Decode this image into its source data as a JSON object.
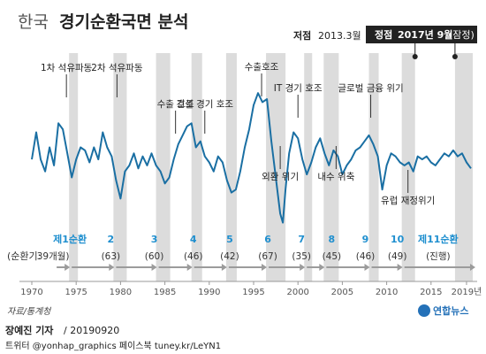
{
  "header": {
    "title_light": "한국",
    "title_bold": "경기순환국면 분석"
  },
  "peak_labels": {
    "trough_prefix": "저점",
    "trough_date": "2013.3월",
    "peak_box_prefix": "정점",
    "peak_box_date": "2017년 9월",
    "peak_box_suffix": "(잠정)"
  },
  "colors": {
    "line": "#1a6fa3",
    "recession_band": "#dcdcdc",
    "cycle_number": "#1f8fcf",
    "arrow": "#9b9b9b",
    "axis_text": "#555555",
    "title_dark": "#222222",
    "badge_bg": "#222222",
    "badge_text": "#ffffff",
    "logo_blue": "#2471b8"
  },
  "events": [
    {
      "label": "1차 석유파동",
      "year": 1973.9
    },
    {
      "label": "2차 석유파동",
      "year": 1979.6
    },
    {
      "label": "수출 호조",
      "year": 1986.2
    },
    {
      "label": "건설 경기 호조",
      "year": 1989.5
    },
    {
      "label": "수출호조",
      "year": 1995.9
    },
    {
      "label": "IT 경기 호조",
      "year": 2000.0
    },
    {
      "label": "글로벌 금융 위기",
      "year": 2008.2
    },
    {
      "label": "외환 위기",
      "year": 1998.0
    },
    {
      "label": "내수 위축",
      "year": 2004.3
    },
    {
      "label": "유럽 재정위기",
      "year": 2012.4
    }
  ],
  "cycles": {
    "prefix_label": "(순환기:",
    "items": [
      {
        "label": "제1순환",
        "months": "39개월)",
        "center": 1974.3
      },
      {
        "label": "2",
        "months": "(63)",
        "center": 1978.9
      },
      {
        "label": "3",
        "months": "(60)",
        "center": 1983.8
      },
      {
        "label": "4",
        "months": "(46)",
        "center": 1988.2
      },
      {
        "label": "5",
        "months": "(42)",
        "center": 1992.3
      },
      {
        "label": "6",
        "months": "(67)",
        "center": 1996.6
      },
      {
        "label": "7",
        "months": "(35)",
        "center": 2000.4
      },
      {
        "label": "8",
        "months": "(45)",
        "center": 2003.8
      },
      {
        "label": "9",
        "months": "(46)",
        "center": 2007.6
      },
      {
        "label": "10",
        "months": "(49)",
        "center": 2011.2
      },
      {
        "label": "제11순환",
        "months": "(진행)",
        "center": 2015.8
      }
    ]
  },
  "axis": {
    "ticks": [
      "1970",
      "1975",
      "1980",
      "1985",
      "1990",
      "1995",
      "2000",
      "2005",
      "2010",
      "2015",
      "2019년"
    ]
  },
  "footer": {
    "source": "자료/통계청",
    "logo": "연합뉴스",
    "byline_name": "장예진 기자",
    "byline_date": "/ 20190920",
    "social": "트위터 @yonhap_graphics  페이스북 tuney.kr/LeYN1"
  },
  "chart_data": {
    "type": "line",
    "title": "한국 경기순환국면 분석",
    "xlim": [
      1970,
      2020
    ],
    "ylim": [
      -1,
      1.6
    ],
    "x_ticks": [
      1970,
      1975,
      1980,
      1985,
      1990,
      1995,
      2000,
      2005,
      2010,
      2015,
      2019
    ],
    "recession_bands": [
      [
        1974.2,
        1975.2
      ],
      [
        1979.2,
        1980.7
      ],
      [
        1984.0,
        1985.6
      ],
      [
        1988.0,
        1989.2
      ],
      [
        1991.9,
        1993.1
      ],
      [
        1996.4,
        1998.6
      ],
      [
        2000.7,
        2001.6
      ],
      [
        2002.9,
        2004.6
      ],
      [
        2008.0,
        2009.1
      ],
      [
        2011.7,
        2013.2
      ],
      [
        2017.7,
        2019.7
      ]
    ],
    "series": [
      {
        "x": [
          1970,
          1970.5,
          1971,
          1971.5,
          1972,
          1972.5,
          1973,
          1973.5,
          1974,
          1974.5,
          1975,
          1975.5,
          1976,
          1976.5,
          1977,
          1977.5,
          1978,
          1978.5,
          1979,
          1979.5,
          1980,
          1980.5,
          1981,
          1981.5,
          1982,
          1982.5,
          1983,
          1983.5,
          1984,
          1984.5,
          1985,
          1985.5,
          1986,
          1986.5,
          1987,
          1987.5,
          1988,
          1988.5,
          1989,
          1989.5,
          1990,
          1990.5,
          1991,
          1991.5,
          1992,
          1992.5,
          1993,
          1993.5,
          1994,
          1994.5,
          1995,
          1995.5,
          1996,
          1996.5,
          1997,
          1997.5,
          1998,
          1998.3,
          1998.6,
          1999,
          1999.5,
          2000,
          2000.5,
          2001,
          2001.5,
          2002,
          2002.5,
          2003,
          2003.5,
          2004,
          2004.5,
          2005,
          2005.5,
          2006,
          2006.5,
          2007,
          2007.5,
          2008,
          2008.5,
          2009,
          2009.5,
          2010,
          2010.5,
          2011,
          2011.5,
          2012,
          2012.5,
          2013,
          2013.5,
          2014,
          2014.5,
          2015,
          2015.5,
          2016,
          2016.5,
          2017,
          2017.5,
          2018,
          2018.5,
          2019,
          2019.5
        ],
        "y": [
          0.1,
          0.55,
          0.1,
          -0.1,
          0.3,
          0.0,
          0.7,
          0.6,
          0.2,
          -0.2,
          0.1,
          0.3,
          0.25,
          0.05,
          0.3,
          0.1,
          0.55,
          0.3,
          0.15,
          -0.25,
          -0.55,
          -0.1,
          0.0,
          0.2,
          -0.05,
          0.15,
          0.0,
          0.2,
          0.0,
          -0.1,
          -0.3,
          -0.2,
          0.1,
          0.35,
          0.5,
          0.65,
          0.7,
          0.3,
          0.4,
          0.15,
          0.05,
          -0.1,
          0.15,
          0.05,
          -0.25,
          -0.45,
          -0.4,
          -0.1,
          0.3,
          0.6,
          1.0,
          1.2,
          1.05,
          1.1,
          0.4,
          -0.2,
          -0.8,
          -0.95,
          -0.4,
          0.2,
          0.55,
          0.45,
          0.1,
          -0.15,
          0.05,
          0.3,
          0.45,
          0.2,
          0.0,
          0.25,
          0.15,
          -0.15,
          0.0,
          0.1,
          0.25,
          0.3,
          0.4,
          0.5,
          0.35,
          0.15,
          -0.4,
          0.0,
          0.2,
          0.15,
          0.05,
          0.0,
          0.05,
          -0.1,
          0.15,
          0.1,
          0.15,
          0.05,
          0.0,
          0.1,
          0.2,
          0.15,
          0.25,
          0.15,
          0.2,
          0.05,
          -0.05
        ]
      }
    ]
  }
}
